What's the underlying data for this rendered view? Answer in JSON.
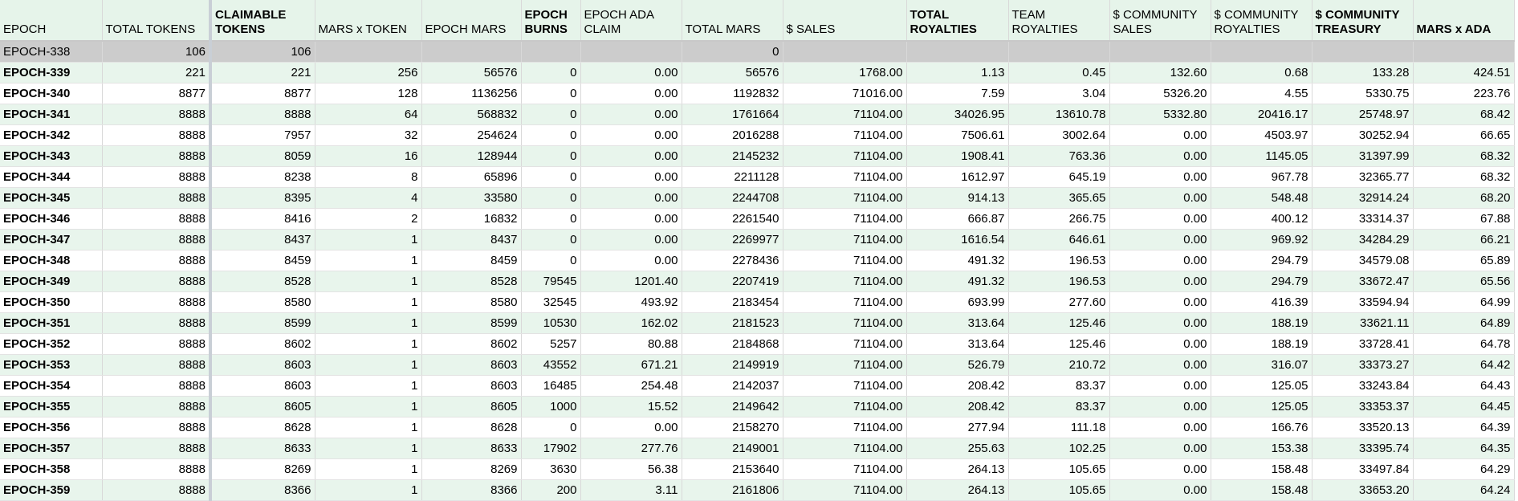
{
  "headers": [
    {
      "label": "EPOCH",
      "bold": false
    },
    {
      "label": "TOTAL TOKENS",
      "bold": false
    },
    {
      "label": "CLAIMABLE TOKENS",
      "bold": true
    },
    {
      "label": "MARS x TOKEN",
      "bold": false
    },
    {
      "label": "EPOCH MARS",
      "bold": false
    },
    {
      "label": "EPOCH BURNS",
      "bold": true
    },
    {
      "label": "EPOCH ADA CLAIM",
      "bold": false
    },
    {
      "label": "TOTAL MARS",
      "bold": false
    },
    {
      "label": "$  SALES",
      "bold": false
    },
    {
      "label": "TOTAL ROYALTIES",
      "bold": true
    },
    {
      "label": "TEAM ROYALTIES",
      "bold": false
    },
    {
      "label": "$ COMMUNITY SALES",
      "bold": false
    },
    {
      "label": "$ COMMUNITY ROYALTIES",
      "bold": false
    },
    {
      "label": "$ COMMUNITY TREASURY",
      "bold": true
    },
    {
      "label": "MARS x ADA",
      "bold": true
    }
  ],
  "rows": [
    [
      "EPOCH-338",
      "106",
      "106",
      "",
      "",
      "",
      "",
      "0",
      "",
      "",
      "",
      "",
      "",
      "",
      ""
    ],
    [
      "EPOCH-339",
      "221",
      "221",
      "256",
      "56576",
      "0",
      "0.00",
      "56576",
      "1768.00",
      "1.13",
      "0.45",
      "132.60",
      "0.68",
      "133.28",
      "424.51"
    ],
    [
      "EPOCH-340",
      "8877",
      "8877",
      "128",
      "1136256",
      "0",
      "0.00",
      "1192832",
      "71016.00",
      "7.59",
      "3.04",
      "5326.20",
      "4.55",
      "5330.75",
      "223.76"
    ],
    [
      "EPOCH-341",
      "8888",
      "8888",
      "64",
      "568832",
      "0",
      "0.00",
      "1761664",
      "71104.00",
      "34026.95",
      "13610.78",
      "5332.80",
      "20416.17",
      "25748.97",
      "68.42"
    ],
    [
      "EPOCH-342",
      "8888",
      "7957",
      "32",
      "254624",
      "0",
      "0.00",
      "2016288",
      "71104.00",
      "7506.61",
      "3002.64",
      "0.00",
      "4503.97",
      "30252.94",
      "66.65"
    ],
    [
      "EPOCH-343",
      "8888",
      "8059",
      "16",
      "128944",
      "0",
      "0.00",
      "2145232",
      "71104.00",
      "1908.41",
      "763.36",
      "0.00",
      "1145.05",
      "31397.99",
      "68.32"
    ],
    [
      "EPOCH-344",
      "8888",
      "8238",
      "8",
      "65896",
      "0",
      "0.00",
      "2211128",
      "71104.00",
      "1612.97",
      "645.19",
      "0.00",
      "967.78",
      "32365.77",
      "68.32"
    ],
    [
      "EPOCH-345",
      "8888",
      "8395",
      "4",
      "33580",
      "0",
      "0.00",
      "2244708",
      "71104.00",
      "914.13",
      "365.65",
      "0.00",
      "548.48",
      "32914.24",
      "68.20"
    ],
    [
      "EPOCH-346",
      "8888",
      "8416",
      "2",
      "16832",
      "0",
      "0.00",
      "2261540",
      "71104.00",
      "666.87",
      "266.75",
      "0.00",
      "400.12",
      "33314.37",
      "67.88"
    ],
    [
      "EPOCH-347",
      "8888",
      "8437",
      "1",
      "8437",
      "0",
      "0.00",
      "2269977",
      "71104.00",
      "1616.54",
      "646.61",
      "0.00",
      "969.92",
      "34284.29",
      "66.21"
    ],
    [
      "EPOCH-348",
      "8888",
      "8459",
      "1",
      "8459",
      "0",
      "0.00",
      "2278436",
      "71104.00",
      "491.32",
      "196.53",
      "0.00",
      "294.79",
      "34579.08",
      "65.89"
    ],
    [
      "EPOCH-349",
      "8888",
      "8528",
      "1",
      "8528",
      "79545",
      "1201.40",
      "2207419",
      "71104.00",
      "491.32",
      "196.53",
      "0.00",
      "294.79",
      "33672.47",
      "65.56"
    ],
    [
      "EPOCH-350",
      "8888",
      "8580",
      "1",
      "8580",
      "32545",
      "493.92",
      "2183454",
      "71104.00",
      "693.99",
      "277.60",
      "0.00",
      "416.39",
      "33594.94",
      "64.99"
    ],
    [
      "EPOCH-351",
      "8888",
      "8599",
      "1",
      "8599",
      "10530",
      "162.02",
      "2181523",
      "71104.00",
      "313.64",
      "125.46",
      "0.00",
      "188.19",
      "33621.11",
      "64.89"
    ],
    [
      "EPOCH-352",
      "8888",
      "8602",
      "1",
      "8602",
      "5257",
      "80.88",
      "2184868",
      "71104.00",
      "313.64",
      "125.46",
      "0.00",
      "188.19",
      "33728.41",
      "64.78"
    ],
    [
      "EPOCH-353",
      "8888",
      "8603",
      "1",
      "8603",
      "43552",
      "671.21",
      "2149919",
      "71104.00",
      "526.79",
      "210.72",
      "0.00",
      "316.07",
      "33373.27",
      "64.42"
    ],
    [
      "EPOCH-354",
      "8888",
      "8603",
      "1",
      "8603",
      "16485",
      "254.48",
      "2142037",
      "71104.00",
      "208.42",
      "83.37",
      "0.00",
      "125.05",
      "33243.84",
      "64.43"
    ],
    [
      "EPOCH-355",
      "8888",
      "8605",
      "1",
      "8605",
      "1000",
      "15.52",
      "2149642",
      "71104.00",
      "208.42",
      "83.37",
      "0.00",
      "125.05",
      "33353.37",
      "64.45"
    ],
    [
      "EPOCH-356",
      "8888",
      "8628",
      "1",
      "8628",
      "0",
      "0.00",
      "2158270",
      "71104.00",
      "277.94",
      "111.18",
      "0.00",
      "166.76",
      "33520.13",
      "64.39"
    ],
    [
      "EPOCH-357",
      "8888",
      "8633",
      "1",
      "8633",
      "17902",
      "277.76",
      "2149001",
      "71104.00",
      "255.63",
      "102.25",
      "0.00",
      "153.38",
      "33395.74",
      "64.35"
    ],
    [
      "EPOCH-358",
      "8888",
      "8269",
      "1",
      "8269",
      "3630",
      "56.38",
      "2153640",
      "71104.00",
      "264.13",
      "105.65",
      "0.00",
      "158.48",
      "33497.84",
      "64.29"
    ],
    [
      "EPOCH-359",
      "8888",
      "8366",
      "1",
      "8366",
      "200",
      "3.11",
      "2161806",
      "71104.00",
      "264.13",
      "105.65",
      "0.00",
      "158.48",
      "33653.20",
      "64.24"
    ]
  ]
}
